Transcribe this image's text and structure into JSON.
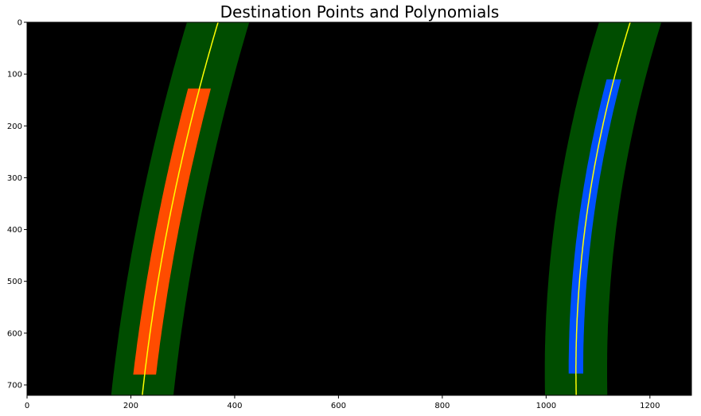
{
  "chart_data": {
    "type": "image",
    "title": "Destination Points and Polynomials",
    "xlim": [
      0,
      1280
    ],
    "ylim": [
      720,
      0
    ],
    "xticks": [
      0,
      200,
      400,
      600,
      800,
      1000,
      1200
    ],
    "yticks": [
      0,
      100,
      200,
      300,
      400,
      500,
      600,
      700
    ],
    "background_color": "#000000",
    "margin": 60,
    "lanes": [
      {
        "name": "left",
        "x_at_y": [
          [
            0,
            368
          ],
          [
            360,
            278
          ],
          [
            720,
            222
          ]
        ],
        "points_y": [
          128,
          680
        ],
        "color": "#ff4c00"
      },
      {
        "name": "right",
        "x_at_y": [
          [
            0,
            1162
          ],
          [
            360,
            1080
          ],
          [
            720,
            1058
          ]
        ],
        "points_y": [
          110,
          680
        ],
        "color": "#0050ff"
      }
    ],
    "colors": {
      "band": "#004d00",
      "polyline": "#ffff00"
    }
  }
}
